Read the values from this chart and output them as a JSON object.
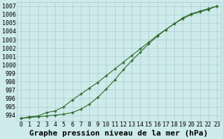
{
  "title": "Graphe pression niveau de la mer (hPa)",
  "background_color": "#ceeaea",
  "grid_color": "#aacece",
  "line_color": "#2d6a2d",
  "x_values": [
    0,
    1,
    2,
    3,
    4,
    5,
    6,
    7,
    8,
    9,
    10,
    11,
    12,
    13,
    14,
    15,
    16,
    17,
    18,
    19,
    20,
    21,
    22,
    23
  ],
  "line1_y": [
    993.6,
    993.8,
    993.9,
    994.3,
    994.5,
    995.0,
    995.8,
    996.5,
    997.2,
    997.9,
    998.7,
    999.5,
    1000.3,
    1001.1,
    1001.9,
    1002.7,
    1003.5,
    1004.2,
    1004.9,
    1005.5,
    1006.0,
    1006.3,
    1006.6,
    1007.0
  ],
  "line2_y": [
    993.6,
    993.7,
    993.8,
    993.9,
    994.0,
    994.1,
    994.3,
    994.7,
    995.3,
    996.1,
    997.1,
    998.2,
    999.4,
    1000.5,
    1001.5,
    1002.5,
    1003.4,
    1004.2,
    1004.9,
    1005.6,
    1006.1,
    1006.4,
    1006.7,
    1007.0
  ],
  "ylim_min": 993.3,
  "ylim_max": 1007.5,
  "ytick_min": 994,
  "ytick_max": 1007,
  "title_fontsize": 8,
  "tick_fontsize": 6
}
